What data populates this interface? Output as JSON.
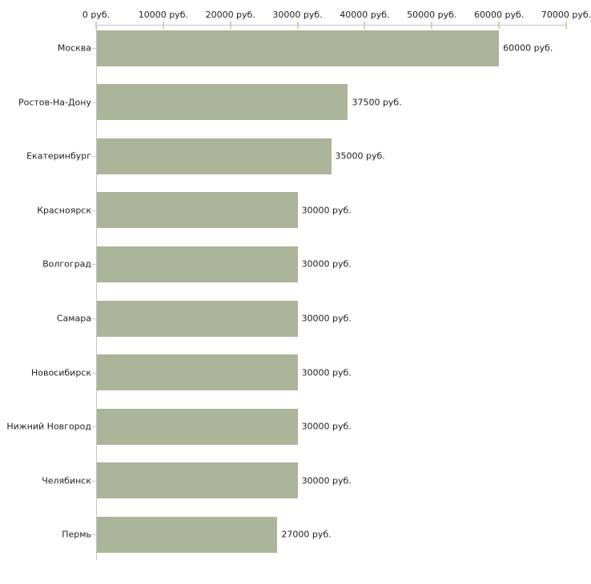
{
  "chart_data": {
    "type": "bar",
    "orientation": "horizontal",
    "title": "",
    "xlabel": "",
    "ylabel": "",
    "categories": [
      "Москва",
      "Ростов-На-Дону",
      "Екатеринбург",
      "Красноярск",
      "Волгоград",
      "Самара",
      "Новосибирск",
      "Нижний Новгород",
      "Челябинск",
      "Пермь"
    ],
    "values": [
      60000,
      37500,
      35000,
      30000,
      30000,
      30000,
      30000,
      30000,
      30000,
      27000
    ],
    "value_labels": [
      "60000 руб.",
      "37500 руб.",
      "35000 руб.",
      "30000 руб.",
      "30000 руб.",
      "30000 руб.",
      "30000 руб.",
      "30000 руб.",
      "30000 руб.",
      "27000 руб."
    ],
    "x_axis": {
      "position": "top",
      "min": 0,
      "max": 70000,
      "ticks": [
        0,
        10000,
        20000,
        30000,
        40000,
        50000,
        60000,
        70000
      ],
      "tick_labels": [
        "0 руб.",
        "10000 руб.",
        "20000 руб.",
        "30000 руб.",
        "40000 руб.",
        "50000 руб.",
        "60000 руб.",
        "70000 руб."
      ]
    },
    "grid": false,
    "legend": false,
    "colors": {
      "bar": "#acb499",
      "axis_line": "#c4c4c4",
      "tick_mark": "#d2cfad",
      "text": "#1f1f1f",
      "background": "#ffffff"
    }
  }
}
